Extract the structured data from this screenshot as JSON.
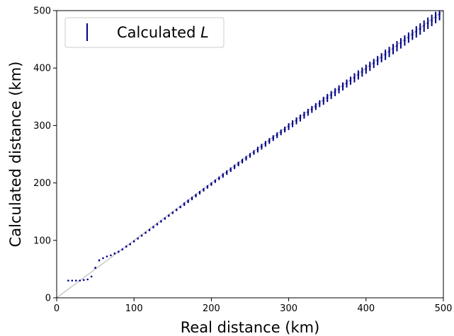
{
  "colors": {
    "series": "#00008b",
    "reference_line": "#c8c8c8",
    "axes": "#000000",
    "legend_border": "#cccccc"
  },
  "chart_data": {
    "type": "scatter",
    "title": "",
    "xlabel": "Real distance (km)",
    "ylabel": "Calculated distance (km)",
    "xlim": [
      0,
      500
    ],
    "ylim": [
      0,
      500
    ],
    "x_ticks": [
      "0",
      "100",
      "200",
      "300",
      "400",
      "500"
    ],
    "y_ticks": [
      "0",
      "100",
      "200",
      "300",
      "400",
      "500"
    ],
    "grid": false,
    "legend": {
      "placement": "top-left",
      "label_prefix": "Calculated ",
      "label_symbol": "L"
    },
    "reference_line": {
      "from": [
        0,
        0
      ],
      "to": [
        500,
        500
      ]
    },
    "series": [
      {
        "name": "Calculated L",
        "points": [
          [
            15,
            30,
            30,
            31
          ],
          [
            20,
            30,
            30,
            31
          ],
          [
            25,
            30,
            30,
            31
          ],
          [
            30,
            30,
            30,
            31
          ],
          [
            35,
            31,
            31,
            32
          ],
          [
            40,
            32,
            31,
            33
          ],
          [
            45,
            37,
            36,
            38
          ],
          [
            50,
            52,
            51,
            54
          ],
          [
            55,
            65,
            64,
            67
          ],
          [
            60,
            69,
            68,
            70
          ],
          [
            65,
            72,
            71,
            73
          ],
          [
            70,
            74,
            73,
            75
          ],
          [
            75,
            77,
            76,
            79
          ],
          [
            80,
            80,
            79,
            82
          ],
          [
            85,
            84,
            83,
            86
          ],
          [
            90,
            89,
            88,
            91
          ],
          [
            95,
            93,
            92,
            95
          ],
          [
            100,
            98,
            97,
            100
          ],
          [
            105,
            103,
            102,
            105
          ],
          [
            110,
            108,
            107,
            110
          ],
          [
            115,
            113,
            112,
            115
          ],
          [
            120,
            118,
            116,
            120
          ],
          [
            125,
            123,
            121,
            125
          ],
          [
            130,
            128,
            126,
            130
          ],
          [
            135,
            133,
            131,
            135
          ],
          [
            140,
            138,
            136,
            140
          ],
          [
            145,
            143,
            141,
            145
          ],
          [
            150,
            148,
            146,
            150
          ],
          [
            155,
            153,
            151,
            155
          ],
          [
            160,
            158,
            156,
            160
          ],
          [
            165,
            163,
            160,
            166
          ],
          [
            170,
            168,
            165,
            171
          ],
          [
            175,
            173,
            170,
            176
          ],
          [
            180,
            178,
            175,
            181
          ],
          [
            185,
            183,
            180,
            186
          ],
          [
            190,
            188,
            185,
            191
          ],
          [
            195,
            193,
            190,
            196
          ],
          [
            200,
            198,
            195,
            201
          ],
          [
            205,
            203,
            200,
            206
          ],
          [
            210,
            208,
            205,
            211
          ],
          [
            215,
            213,
            209,
            217
          ],
          [
            220,
            218,
            214,
            222
          ],
          [
            225,
            223,
            219,
            227
          ],
          [
            230,
            228,
            224,
            232
          ],
          [
            235,
            233,
            229,
            237
          ],
          [
            240,
            238,
            234,
            242
          ],
          [
            245,
            243,
            239,
            247
          ],
          [
            250,
            248,
            244,
            252
          ],
          [
            255,
            253,
            249,
            257
          ],
          [
            260,
            258,
            253,
            263
          ],
          [
            265,
            263,
            258,
            268
          ],
          [
            270,
            268,
            263,
            273
          ],
          [
            275,
            273,
            268,
            278
          ],
          [
            280,
            278,
            273,
            283
          ],
          [
            285,
            283,
            278,
            288
          ],
          [
            290,
            288,
            283,
            293
          ],
          [
            295,
            293,
            288,
            298
          ],
          [
            300,
            298,
            292,
            304
          ],
          [
            305,
            303,
            297,
            309
          ],
          [
            310,
            308,
            302,
            314
          ],
          [
            315,
            313,
            307,
            319
          ],
          [
            320,
            318,
            312,
            324
          ],
          [
            325,
            323,
            317,
            329
          ],
          [
            330,
            328,
            322,
            334
          ],
          [
            335,
            333,
            327,
            339
          ],
          [
            340,
            338,
            332,
            344
          ],
          [
            345,
            343,
            336,
            350
          ],
          [
            350,
            348,
            341,
            355
          ],
          [
            355,
            353,
            346,
            360
          ],
          [
            360,
            358,
            351,
            365
          ],
          [
            365,
            363,
            356,
            370
          ],
          [
            370,
            368,
            361,
            375
          ],
          [
            375,
            373,
            366,
            380
          ],
          [
            380,
            378,
            371,
            385
          ],
          [
            385,
            383,
            375,
            391
          ],
          [
            390,
            388,
            380,
            396
          ],
          [
            395,
            393,
            385,
            401
          ],
          [
            400,
            398,
            390,
            406
          ],
          [
            405,
            403,
            395,
            411
          ],
          [
            410,
            408,
            400,
            416
          ],
          [
            415,
            413,
            405,
            421
          ],
          [
            420,
            418,
            410,
            426
          ],
          [
            425,
            423,
            414,
            432
          ],
          [
            430,
            428,
            419,
            437
          ],
          [
            435,
            433,
            424,
            442
          ],
          [
            440,
            438,
            429,
            447
          ],
          [
            445,
            443,
            434,
            452
          ],
          [
            450,
            448,
            439,
            457
          ],
          [
            455,
            453,
            444,
            462
          ],
          [
            460,
            458,
            449,
            467
          ],
          [
            465,
            463,
            453,
            473
          ],
          [
            470,
            468,
            458,
            478
          ],
          [
            475,
            473,
            463,
            483
          ],
          [
            480,
            478,
            468,
            488
          ],
          [
            485,
            483,
            473,
            493
          ],
          [
            490,
            488,
            478,
            498
          ],
          [
            495,
            493,
            483,
            503
          ]
        ]
      }
    ]
  }
}
